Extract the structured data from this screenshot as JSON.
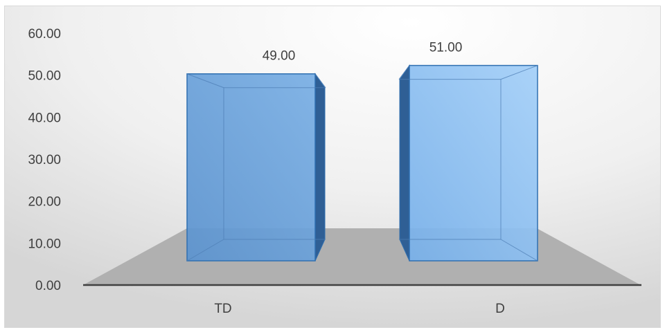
{
  "chart_data": {
    "type": "bar",
    "style": "3d-box",
    "categories": [
      "TD",
      "D"
    ],
    "series": [
      {
        "values": [
          49.0,
          51.0
        ]
      }
    ],
    "data_labels": [
      "49.00",
      "51.00"
    ],
    "y_ticks": [
      "0.00",
      "10.00",
      "20.00",
      "30.00",
      "40.00",
      "50.00",
      "60.00"
    ],
    "ylim": [
      0,
      60
    ],
    "grid": false,
    "legend": "none",
    "colors": {
      "bar_front_dark": "#5b93cf",
      "bar_front_light": "#9ccaf6",
      "bar_side": "#2f5f95",
      "bar_edge": "#2f6fb0",
      "floor": "#b0b0b0",
      "background_light": "#ffffff",
      "background_dark": "#d9d9d9"
    }
  }
}
